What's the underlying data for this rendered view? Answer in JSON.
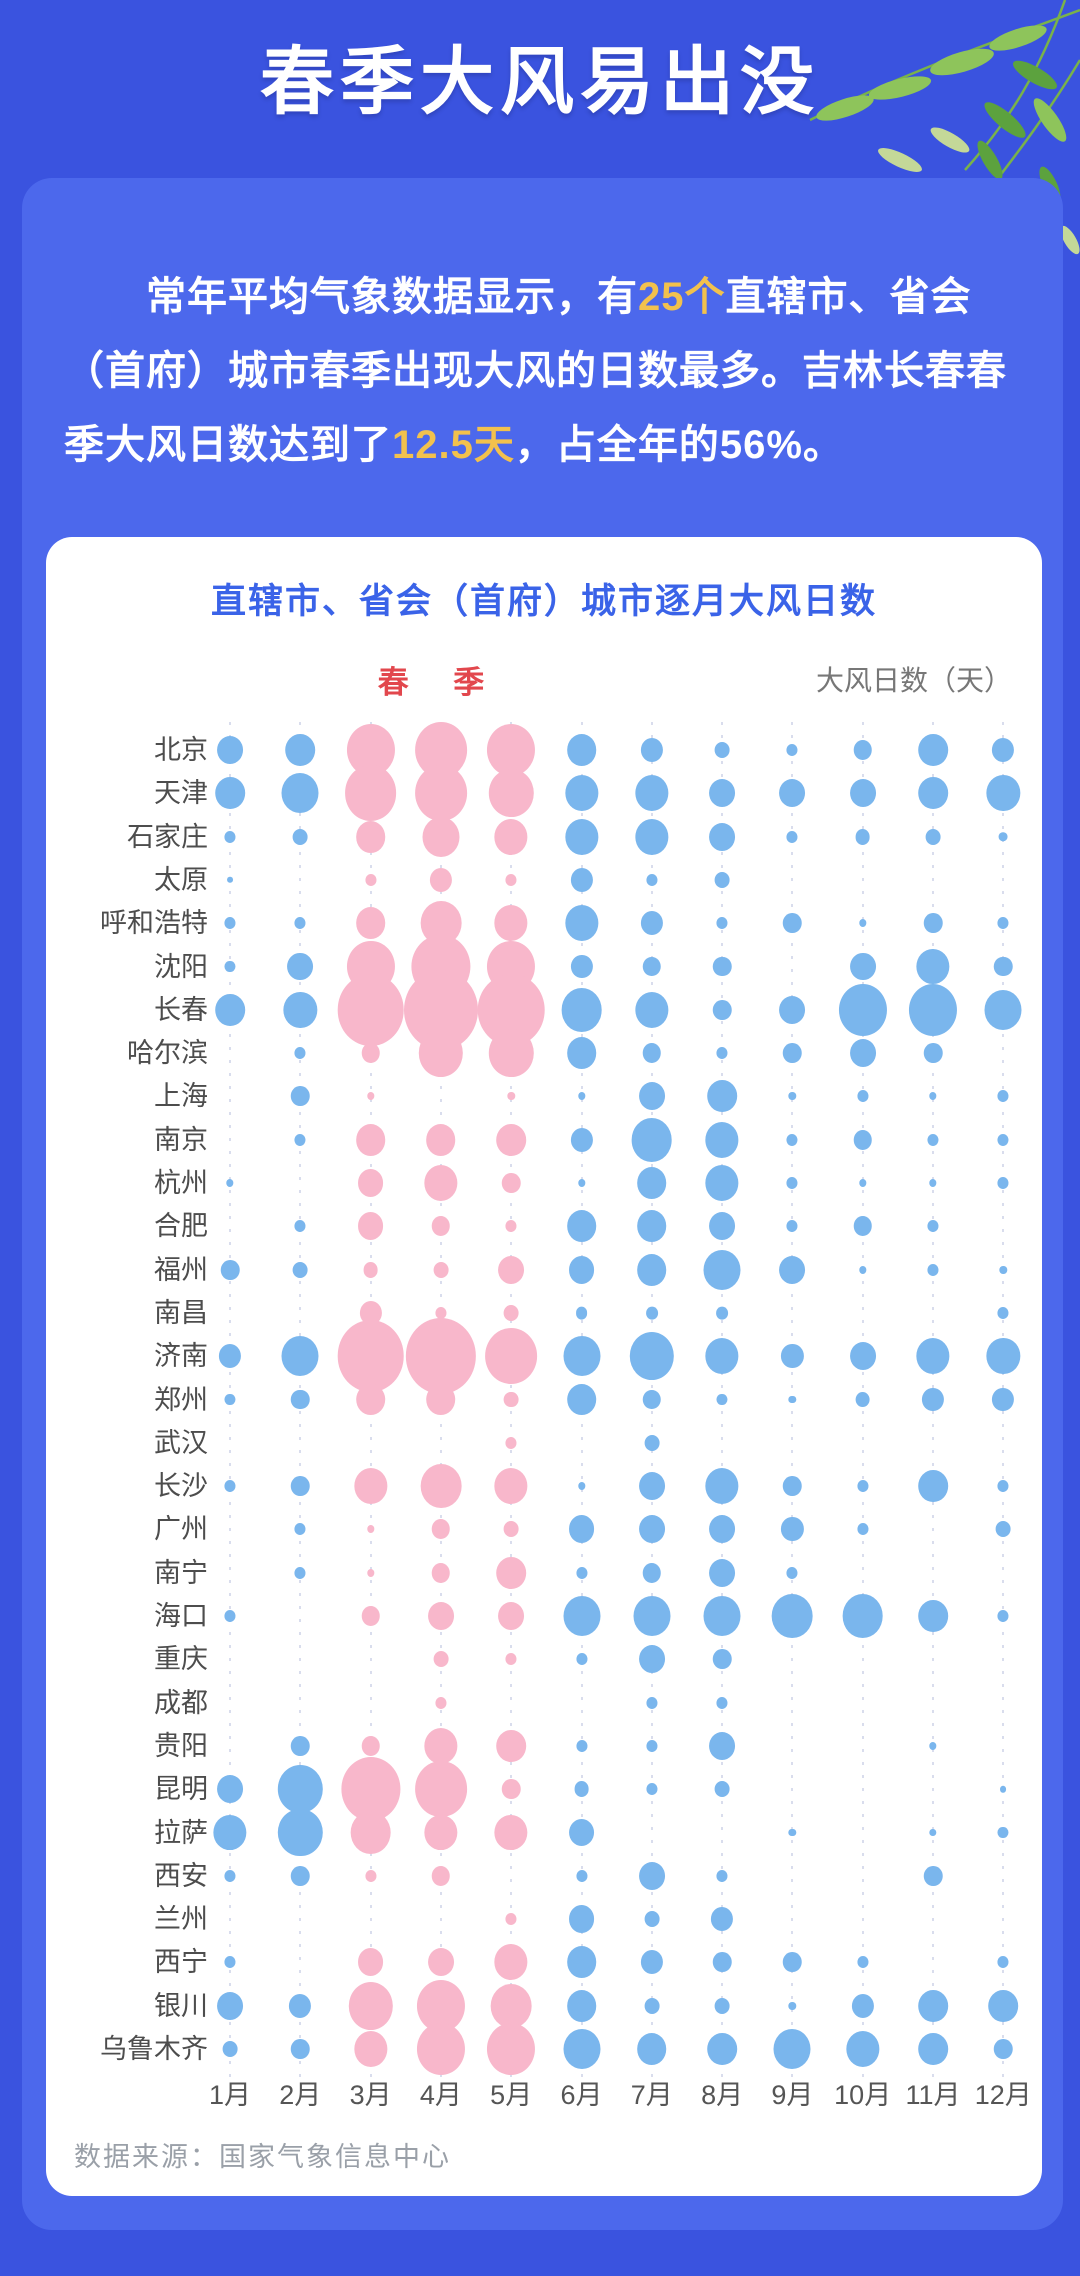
{
  "header": {
    "title": "春季大风易出没"
  },
  "intro": {
    "segments": [
      {
        "text": "常年平均气象数据显示，有",
        "highlight": false
      },
      {
        "text": "25个",
        "highlight": true
      },
      {
        "text": "直辖市、省会（首府）城市春季出现大风的日数最多。吉林长春春季大风日数达到了",
        "highlight": false
      },
      {
        "text": "12.5天",
        "highlight": true
      },
      {
        "text": "，占全年的56%。",
        "highlight": false
      }
    ]
  },
  "chart_data": {
    "type": "scatter",
    "subtype": "bubble-matrix",
    "title": "直辖市、省会（首府）城市逐月大风日数",
    "season_label": "春  季",
    "unit_label": "大风日数（天）",
    "x_categories": [
      "1月",
      "2月",
      "3月",
      "4月",
      "5月",
      "6月",
      "7月",
      "8月",
      "9月",
      "10月",
      "11月",
      "12月"
    ],
    "spring_month_indices": [
      2,
      3,
      4
    ],
    "value_note": "relative bubble size 0-10; 10 = largest (长春 4月)",
    "series": [
      {
        "name": "北京",
        "values": [
          3.5,
          4,
          6.5,
          7,
          6.5,
          4,
          3,
          2,
          1.5,
          2.5,
          4,
          3
        ]
      },
      {
        "name": "天津",
        "values": [
          4,
          5,
          7,
          7,
          6,
          4.5,
          4.5,
          3.5,
          3.5,
          3.5,
          4,
          4.5
        ]
      },
      {
        "name": "石家庄",
        "values": [
          1.5,
          2,
          4,
          5,
          4.5,
          4.5,
          4.5,
          3.5,
          1.5,
          2,
          2,
          1.2
        ]
      },
      {
        "name": "太原",
        "values": [
          0.8,
          0,
          1.5,
          3,
          1.5,
          3,
          1.5,
          2,
          0,
          0,
          0,
          0
        ]
      },
      {
        "name": "呼和浩特",
        "values": [
          1.5,
          1.5,
          4,
          5.5,
          4.5,
          4.5,
          3,
          1.5,
          2.5,
          1,
          2.5,
          1.5
        ]
      },
      {
        "name": "沈阳",
        "values": [
          1.5,
          3.5,
          6.5,
          8,
          6.5,
          3,
          2.5,
          2.5,
          0,
          3.5,
          4.5,
          2.5
        ]
      },
      {
        "name": "长春",
        "values": [
          4,
          4.5,
          9,
          10,
          9,
          5.5,
          4.5,
          2.5,
          3.5,
          6.5,
          6.5,
          5
        ]
      },
      {
        "name": "哈尔滨",
        "values": [
          0,
          1.5,
          2.5,
          6,
          6,
          4,
          2.5,
          1.5,
          2.5,
          3.5,
          2.5,
          0
        ]
      },
      {
        "name": "上海",
        "values": [
          0,
          2.5,
          1,
          0,
          1,
          1,
          3.5,
          4,
          1,
          1.5,
          1,
          1.5
        ]
      },
      {
        "name": "南京",
        "values": [
          0,
          1.5,
          4,
          4,
          4,
          3,
          5.5,
          4.5,
          1.5,
          2.5,
          1.5,
          1.5
        ]
      },
      {
        "name": "杭州",
        "values": [
          1,
          0,
          3.5,
          4.5,
          2.5,
          1,
          4,
          4.5,
          1.5,
          1,
          1,
          1.5
        ]
      },
      {
        "name": "合肥",
        "values": [
          0,
          1.5,
          3.5,
          2.5,
          1.5,
          4,
          4,
          3.5,
          1.5,
          2.5,
          1.5,
          0
        ]
      },
      {
        "name": "福州",
        "values": [
          2.5,
          2,
          2,
          2,
          3.5,
          3.5,
          4,
          5,
          3.5,
          1,
          1.5,
          1
        ]
      },
      {
        "name": "南昌",
        "values": [
          0,
          0,
          3,
          1.5,
          2,
          1.6,
          1.6,
          1.6,
          0,
          0,
          0,
          1.5
        ]
      },
      {
        "name": "济南",
        "values": [
          3,
          5,
          9,
          9.5,
          7,
          5,
          6,
          4.5,
          3,
          3.5,
          4.5,
          4.5
        ]
      },
      {
        "name": "郑州",
        "values": [
          1.5,
          2.5,
          4,
          4,
          2,
          4,
          2.5,
          1.5,
          1,
          2,
          3,
          3
        ]
      },
      {
        "name": "武汉",
        "values": [
          0,
          0,
          0,
          0,
          1.5,
          0,
          2,
          0,
          0,
          0,
          0,
          0
        ]
      },
      {
        "name": "长沙",
        "values": [
          1.5,
          2.5,
          4.5,
          5.5,
          4.5,
          1,
          3.5,
          4.5,
          2.5,
          1.5,
          4,
          1.5
        ]
      },
      {
        "name": "广州",
        "values": [
          0,
          1.5,
          1,
          2.5,
          2,
          3.5,
          3.5,
          3.5,
          3,
          1.5,
          0,
          2
        ]
      },
      {
        "name": "南宁",
        "values": [
          0,
          1.5,
          1,
          2.5,
          4,
          1.5,
          2.5,
          3.5,
          1.5,
          0,
          0,
          0
        ]
      },
      {
        "name": "海口",
        "values": [
          1.5,
          0,
          2.5,
          3.5,
          3.5,
          5,
          5,
          5,
          5.5,
          5.5,
          4,
          1.5
        ]
      },
      {
        "name": "重庆",
        "values": [
          0,
          0,
          0,
          2,
          1.5,
          1.5,
          3.5,
          2.5,
          0,
          0,
          0,
          0
        ]
      },
      {
        "name": "成都",
        "values": [
          0,
          0,
          0,
          1.5,
          0,
          0,
          1.5,
          1.5,
          0,
          0,
          0,
          0
        ]
      },
      {
        "name": "贵阳",
        "values": [
          0,
          2.5,
          2.5,
          4.5,
          4,
          1.5,
          1.5,
          3.5,
          0,
          0,
          1,
          0
        ]
      },
      {
        "name": "昆明",
        "values": [
          3.5,
          6,
          8,
          7,
          2.5,
          2,
          1.5,
          2,
          0,
          0,
          0,
          0.8
        ]
      },
      {
        "name": "拉萨",
        "values": [
          4.5,
          6,
          5.5,
          4.5,
          4.5,
          3.5,
          0,
          0,
          1,
          0,
          1,
          1.5
        ]
      },
      {
        "name": "西安",
        "values": [
          1.5,
          2.5,
          1.5,
          2.5,
          0,
          1.5,
          3.5,
          1.5,
          0,
          0,
          2.5,
          0
        ]
      },
      {
        "name": "兰州",
        "values": [
          0,
          0,
          0,
          0,
          1.5,
          3.5,
          2,
          3,
          0,
          0,
          0,
          0
        ]
      },
      {
        "name": "西宁",
        "values": [
          1.5,
          0,
          3.5,
          3.5,
          4.5,
          4,
          3,
          2.5,
          2.5,
          1.5,
          0,
          1.5
        ]
      },
      {
        "name": "银川",
        "values": [
          3.5,
          3,
          6,
          6.5,
          5.5,
          4,
          2,
          2,
          1,
          3,
          4,
          4
        ]
      },
      {
        "name": "乌鲁木齐",
        "values": [
          2,
          2.5,
          4.5,
          6.5,
          6.5,
          5,
          4,
          4,
          5,
          4.5,
          4,
          2.5
        ]
      }
    ],
    "colors": {
      "spring_bubble": "#f8b7cb",
      "other_bubble": "#7ab6ed"
    },
    "legend_position": "none",
    "grid": "dotted-vertical"
  },
  "theme": {
    "page_background": "#3a53df",
    "card_background": "#4c68ec",
    "panel_background": "#ffffff",
    "title_blue": "#3a63e8",
    "highlight_gold": "#f2c14d",
    "season_red": "#e2474d"
  },
  "footer": {
    "source": "数据来源：国家气象信息中心"
  }
}
